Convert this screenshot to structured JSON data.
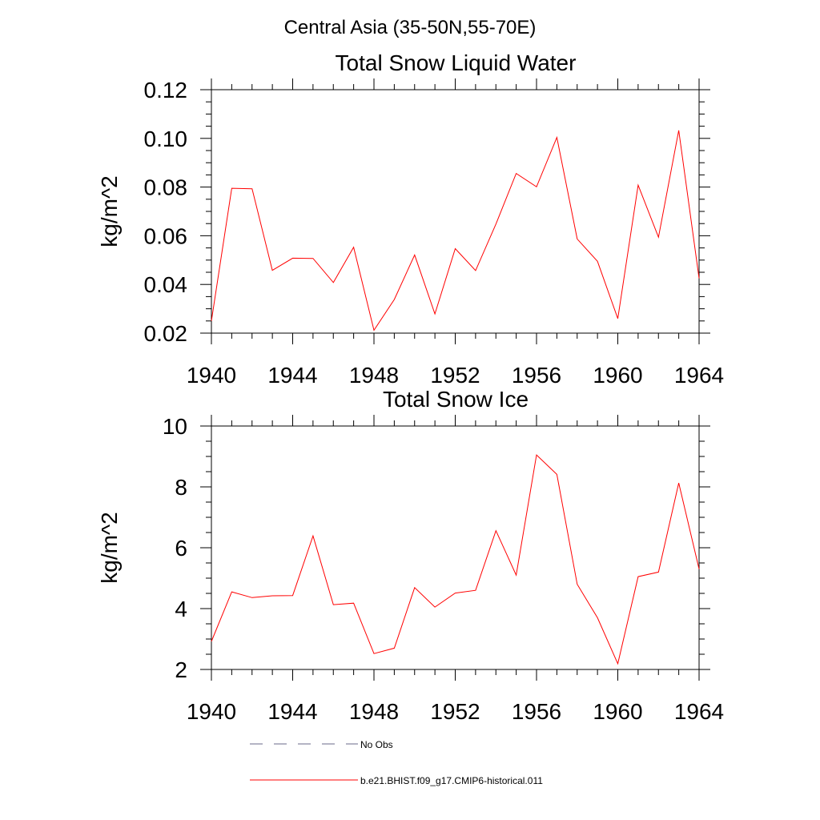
{
  "figure": {
    "suptitle": "Central Asia (35-50N,55-70E)",
    "legend": [
      {
        "label": "No Obs",
        "color": "#6a6a8a",
        "dash": "dashed"
      },
      {
        "label": "b.e21.BHIST.f09_g17.CMIP6-historical.011",
        "color": "#ff0000",
        "dash": "solid"
      }
    ]
  },
  "chart_data": [
    {
      "type": "line",
      "title": "Total Snow Liquid Water",
      "xlabel": "",
      "ylabel": "kg/m^2",
      "xlim": [
        1940,
        1964
      ],
      "ylim": [
        0.02,
        0.12
      ],
      "xticks": [
        1940,
        1944,
        1948,
        1952,
        1956,
        1960,
        1964
      ],
      "xtick_labels": [
        "1940",
        "1944",
        "1948",
        "1952",
        "1956",
        "1960",
        "1964"
      ],
      "yticks": [
        0.02,
        0.04,
        0.06,
        0.08,
        0.1,
        0.12
      ],
      "ytick_labels": [
        "0.02",
        "0.04",
        "0.06",
        "0.08",
        "0.10",
        "0.12"
      ],
      "grid": false,
      "series": [
        {
          "name": "b.e21.BHIST.f09_g17.CMIP6-historical.011",
          "color": "#ff0000",
          "x": [
            1940,
            1941,
            1942,
            1943,
            1944,
            1945,
            1946,
            1947,
            1948,
            1949,
            1950,
            1951,
            1952,
            1953,
            1954,
            1955,
            1956,
            1957,
            1958,
            1959,
            1960,
            1961,
            1962,
            1963,
            1964
          ],
          "y": [
            0.025,
            0.0795,
            0.0793,
            0.0458,
            0.0508,
            0.0507,
            0.0408,
            0.0553,
            0.0212,
            0.0338,
            0.0521,
            0.0279,
            0.0547,
            0.0457,
            0.0648,
            0.0856,
            0.0801,
            0.1004,
            0.0587,
            0.0495,
            0.026,
            0.0808,
            0.0594,
            0.1033,
            0.0425
          ]
        }
      ]
    },
    {
      "type": "line",
      "title": "Total Snow Ice",
      "xlabel": "",
      "ylabel": "kg/m^2",
      "xlim": [
        1940,
        1964
      ],
      "ylim": [
        2,
        10
      ],
      "xticks": [
        1940,
        1944,
        1948,
        1952,
        1956,
        1960,
        1964
      ],
      "xtick_labels": [
        "1940",
        "1944",
        "1948",
        "1952",
        "1956",
        "1960",
        "1964"
      ],
      "yticks": [
        2,
        4,
        6,
        8,
        10
      ],
      "ytick_labels": [
        "2",
        "4",
        "6",
        "8",
        "10"
      ],
      "grid": false,
      "series": [
        {
          "name": "b.e21.BHIST.f09_g17.CMIP6-historical.011",
          "color": "#ff0000",
          "x": [
            1940,
            1941,
            1942,
            1943,
            1944,
            1945,
            1946,
            1947,
            1948,
            1949,
            1950,
            1951,
            1952,
            1953,
            1954,
            1955,
            1956,
            1957,
            1958,
            1959,
            1960,
            1961,
            1962,
            1963,
            1964
          ],
          "y": [
            2.92,
            4.55,
            4.36,
            4.42,
            4.43,
            6.39,
            4.13,
            4.18,
            2.52,
            2.7,
            4.69,
            4.05,
            4.51,
            4.6,
            6.56,
            5.1,
            9.05,
            8.41,
            4.8,
            3.7,
            2.19,
            5.05,
            5.2,
            8.13,
            5.3
          ]
        }
      ]
    }
  ]
}
